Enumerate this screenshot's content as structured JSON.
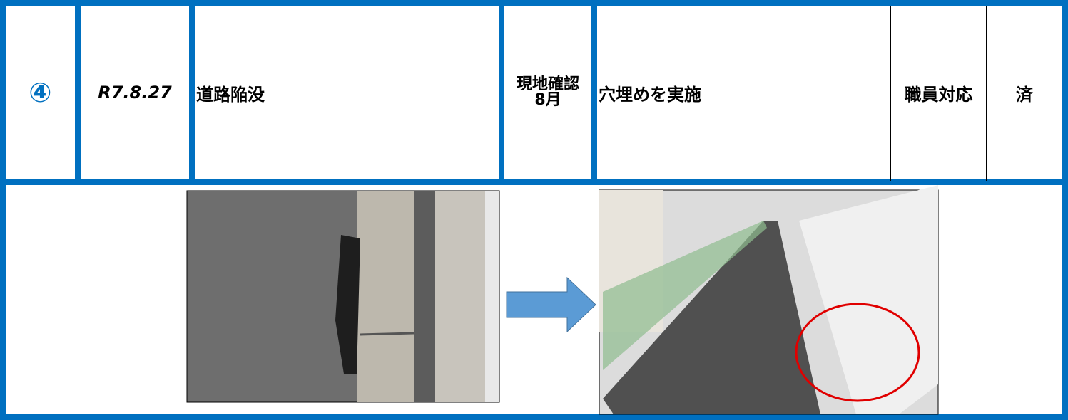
{
  "table": {
    "rows": [
      [
        "④",
        "R7.8.27",
        "道路陥没",
        [
          "現地確認",
          "8月"
        ],
        "穴埋めを実施",
        "職員対応",
        "済"
      ]
    ]
  }
}
